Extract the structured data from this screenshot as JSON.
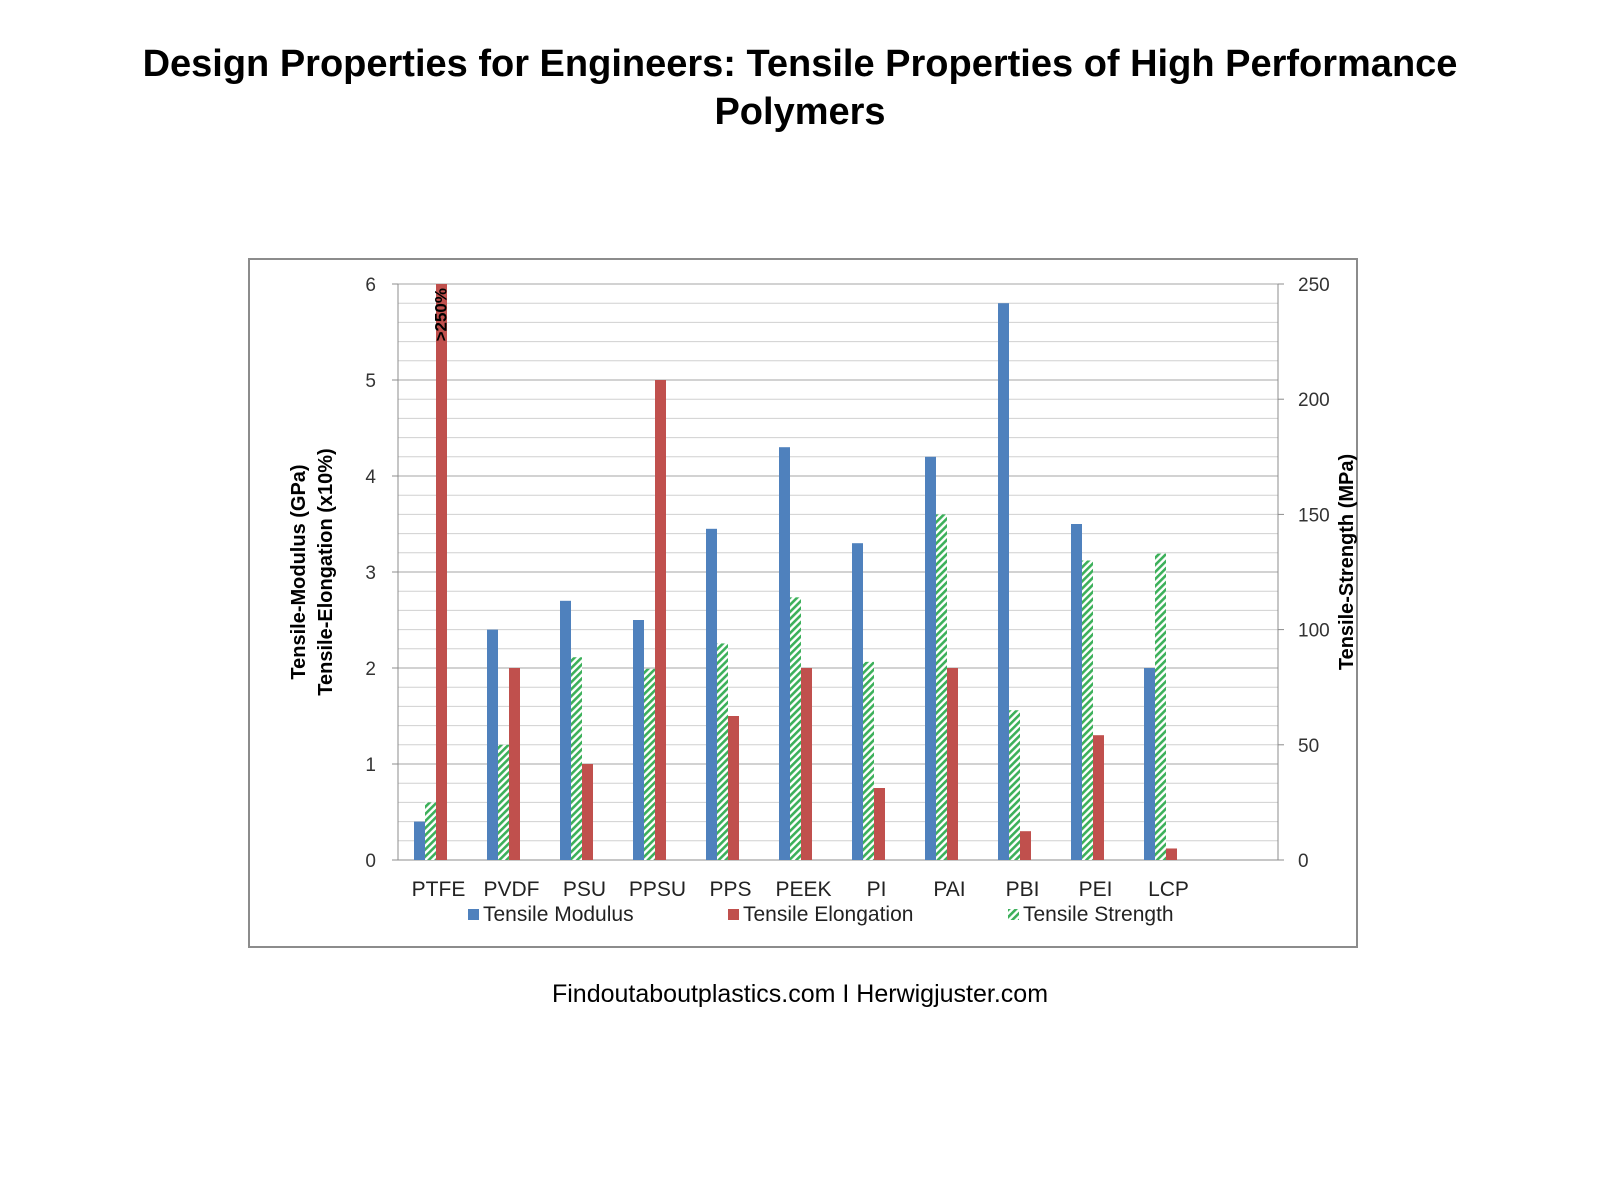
{
  "title_line1": "Design Properties for Engineers: Tensile Properties of High Performance",
  "title_line2": "Polymers",
  "credit": "Findoutaboutplastics.com I Herwigjuster.com",
  "chart_data": {
    "type": "bar",
    "categories": [
      "PTFE",
      "PVDF",
      "PSU",
      "PPSU",
      "PPS",
      "PEEK",
      "PI",
      "PAI",
      "PBI",
      "PEI",
      "LCP"
    ],
    "series": [
      {
        "name": "Tensile Modulus",
        "axis": "left",
        "color": "#4f81bd",
        "pattern": "solid",
        "values": [
          0.4,
          2.4,
          2.7,
          2.5,
          3.45,
          4.3,
          3.3,
          4.2,
          5.8,
          3.5,
          2.0
        ]
      },
      {
        "name": "Tensile Strength",
        "axis": "right",
        "color": "#3cb05a",
        "pattern": "hatched",
        "values": [
          25,
          50,
          88,
          83,
          94,
          114,
          86,
          150,
          65,
          130,
          133
        ]
      },
      {
        "name": "Tensile Elongation",
        "axis": "left",
        "color": "#c0504d",
        "pattern": "solid",
        "values": [
          6,
          2.0,
          1.0,
          5.0,
          1.5,
          2.0,
          0.75,
          2.0,
          0.3,
          1.3,
          0.12
        ]
      }
    ],
    "legend_order": [
      "Tensile Modulus",
      "Tensile Elongation",
      "Tensile Strength"
    ],
    "legend_position": "bottom",
    "ylabel_left_line1": "Tensile-Modulus (GPa)",
    "ylabel_left_line2": "Tensile-Elongation (x10%)",
    "ylabel_right": "Tensile-Strength (MPa)",
    "ylim_left": [
      0,
      6
    ],
    "yticks_left": [
      "0",
      "1",
      "2",
      "3",
      "4",
      "5",
      "6"
    ],
    "ylim_right": [
      0,
      250
    ],
    "yticks_right": [
      "0",
      "50",
      "100",
      "150",
      "200",
      "250"
    ],
    "minor_grid_step_left": 0.2,
    "grid": true,
    "annotation": ">250%"
  }
}
